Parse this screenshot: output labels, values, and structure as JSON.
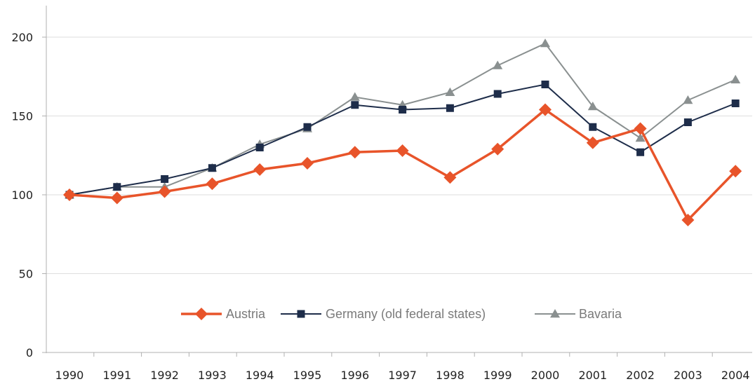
{
  "chart_data": {
    "type": "line",
    "title": "",
    "xlabel": "",
    "ylabel": "",
    "categories": [
      "1990",
      "1991",
      "1992",
      "1993",
      "1994",
      "1995",
      "1996",
      "1997",
      "1998",
      "1999",
      "2000",
      "2001",
      "2002",
      "2003",
      "2004"
    ],
    "ylim": [
      0,
      200
    ],
    "yticks": [
      "0",
      "50",
      "100",
      "150",
      "200"
    ],
    "grid": true,
    "legend_position": "bottom-center",
    "series": [
      {
        "name": "Austria",
        "color": "#e8542a",
        "marker": "diamond",
        "values": [
          100,
          98,
          102,
          107,
          116,
          120,
          127,
          128,
          111,
          129,
          154,
          133,
          142,
          84,
          115
        ]
      },
      {
        "name": "Germany (old federal states)",
        "color": "#1e2d4a",
        "marker": "square",
        "values": [
          100,
          105,
          110,
          117,
          130,
          143,
          157,
          154,
          155,
          164,
          170,
          143,
          127,
          146,
          158
        ]
      },
      {
        "name": "Bavaria",
        "color": "#8a9090",
        "marker": "triangle",
        "values": [
          100,
          105,
          105,
          117,
          132,
          142,
          162,
          157,
          165,
          182,
          196,
          156,
          136,
          160,
          173
        ]
      }
    ]
  }
}
